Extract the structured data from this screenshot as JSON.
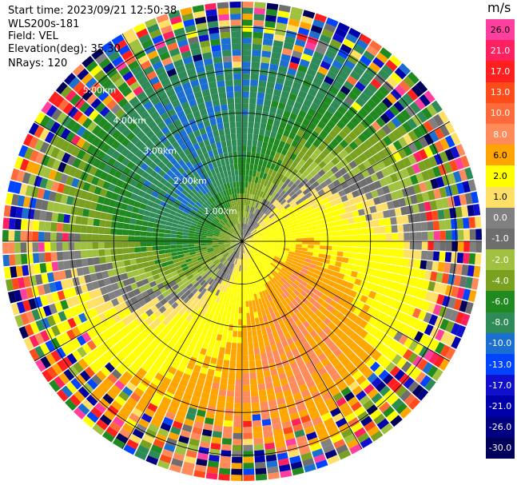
{
  "header": {
    "start_time": "Start time: 2023/09/21 12:50:38",
    "instrument": "WLS200s-181",
    "field": "Field: VEL",
    "elevation": "Elevation(deg): 35.30",
    "nrays": "NRays: 120"
  },
  "colorbar": {
    "unit": "m/s",
    "labels": [
      "26.0",
      "21.0",
      "17.0",
      "13.0",
      "10.0",
      "8.0",
      "6.0",
      "2.0",
      "1.0",
      "0.0",
      "-1.0",
      "-2.0",
      "-4.0",
      "-6.0",
      "-8.0",
      "-10.0",
      "-13.0",
      "-17.0",
      "-21.0",
      "-26.0",
      "-30.0"
    ],
    "colors": [
      "#ff3fa0",
      "#ff2060",
      "#ff1f1f",
      "#ff4a1a",
      "#ff6a3a",
      "#ff8a5a",
      "#ffa500",
      "#ffff00",
      "#ffe066",
      "#808080",
      "#6e6e6e",
      "#a0c040",
      "#7aa020",
      "#208a20",
      "#2e8b57",
      "#1a6fd0",
      "#0044ff",
      "#1010cc",
      "#0000aa",
      "#000080",
      "#00005a"
    ],
    "text_colors": [
      "#000",
      "#fff",
      "#fff",
      "#fff",
      "#fff",
      "#fff",
      "#000",
      "#000",
      "#000",
      "#fff",
      "#fff",
      "#fff",
      "#fff",
      "#fff",
      "#fff",
      "#fff",
      "#fff",
      "#fff",
      "#fff",
      "#fff",
      "#fff"
    ]
  },
  "chart_data": {
    "type": "ppi",
    "field": "VEL",
    "units": "m/s",
    "range_rings_km": [
      "1.00km",
      "2.00km",
      "3.00km",
      "4.00km",
      "5.00km"
    ],
    "nrays": 120,
    "note_visible_pattern": "negative velocities (green/blue) west/northwest, positive velocities (orange/red) east/southeast, with S-shaped zero-velocity band",
    "max_range_km": 5.6
  }
}
